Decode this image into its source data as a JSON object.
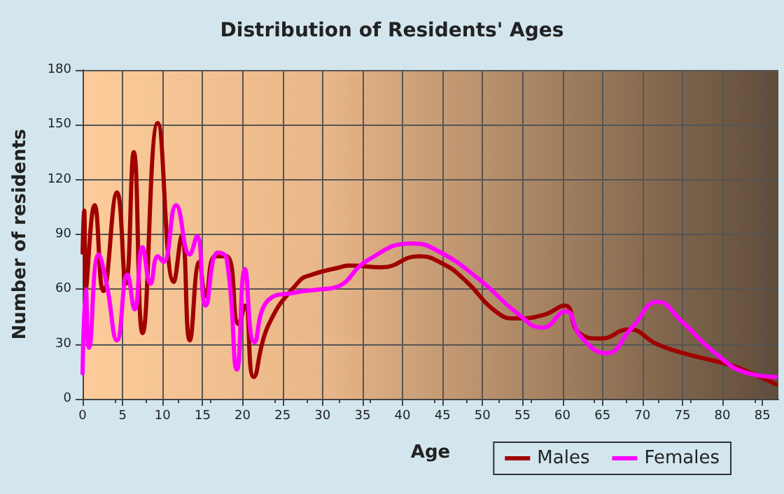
{
  "chart_data": {
    "type": "line",
    "title": "Distribution of Residents' Ages",
    "xlabel": "Age",
    "ylabel": "Number of residents",
    "xlim": [
      0,
      87
    ],
    "xticks": [
      0,
      5,
      10,
      15,
      20,
      25,
      30,
      35,
      40,
      45,
      50,
      55,
      60,
      65,
      70,
      75,
      80,
      85
    ],
    "ylim": [
      0,
      180
    ],
    "yticks": [
      0,
      30,
      60,
      90,
      120,
      150,
      180
    ],
    "grid": true,
    "legend": "bottom right",
    "marker": "none",
    "line_style": "solid",
    "series": [
      {
        "name": "Males",
        "color": "#a00000",
        "x": [
          0,
          0.2,
          0.4,
          1.5,
          2.6,
          4.3,
          5.4,
          6.4,
          7.5,
          9.4,
          11.4,
          12.4,
          13.4,
          14.6,
          15.4,
          16.6,
          18,
          19.5,
          20.3,
          21.4,
          23.2,
          27,
          28.7,
          32.2,
          33.3,
          37.4,
          42,
          45,
          47.8,
          51.9,
          54.2,
          57.7,
          60.3,
          62.1,
          64.8,
          68.3,
          71.8,
          75.1,
          79.7,
          82,
          86.7
        ],
        "values": [
          80,
          103,
          60,
          106,
          59,
          113,
          63,
          135,
          36,
          151,
          64,
          89,
          32,
          75,
          56,
          78,
          78,
          41,
          51,
          12,
          40,
          64,
          68,
          72,
          73,
          72,
          78,
          74,
          65,
          47,
          44,
          46,
          51,
          36,
          33,
          38,
          30,
          25,
          20,
          17,
          8
        ]
      },
      {
        "name": "Females",
        "color": "#ff00ff",
        "x": [
          0,
          0.4,
          0.8,
          2,
          3,
          4.3,
          5.6,
          6.5,
          7.5,
          8.5,
          9.4,
          10.1,
          11.7,
          13.4,
          14.3,
          15.4,
          16.9,
          18,
          19.3,
          20.3,
          21.5,
          23.2,
          26.4,
          29.9,
          31.6,
          35.7,
          41.2,
          44.4,
          49.7,
          54.3,
          57.5,
          60.4,
          62.3,
          65.5,
          68.7,
          71.9,
          75,
          79.1,
          83.2,
          86.7
        ],
        "values": [
          14,
          60,
          28,
          79,
          63,
          32,
          68,
          49,
          83,
          63,
          78,
          75,
          106,
          79,
          89,
          51,
          80,
          77,
          16,
          71,
          31,
          54,
          58,
          60,
          61,
          76,
          85,
          81,
          65,
          47,
          39,
          48,
          34,
          25,
          39,
          53,
          42,
          25,
          14,
          12
        ]
      }
    ]
  }
}
